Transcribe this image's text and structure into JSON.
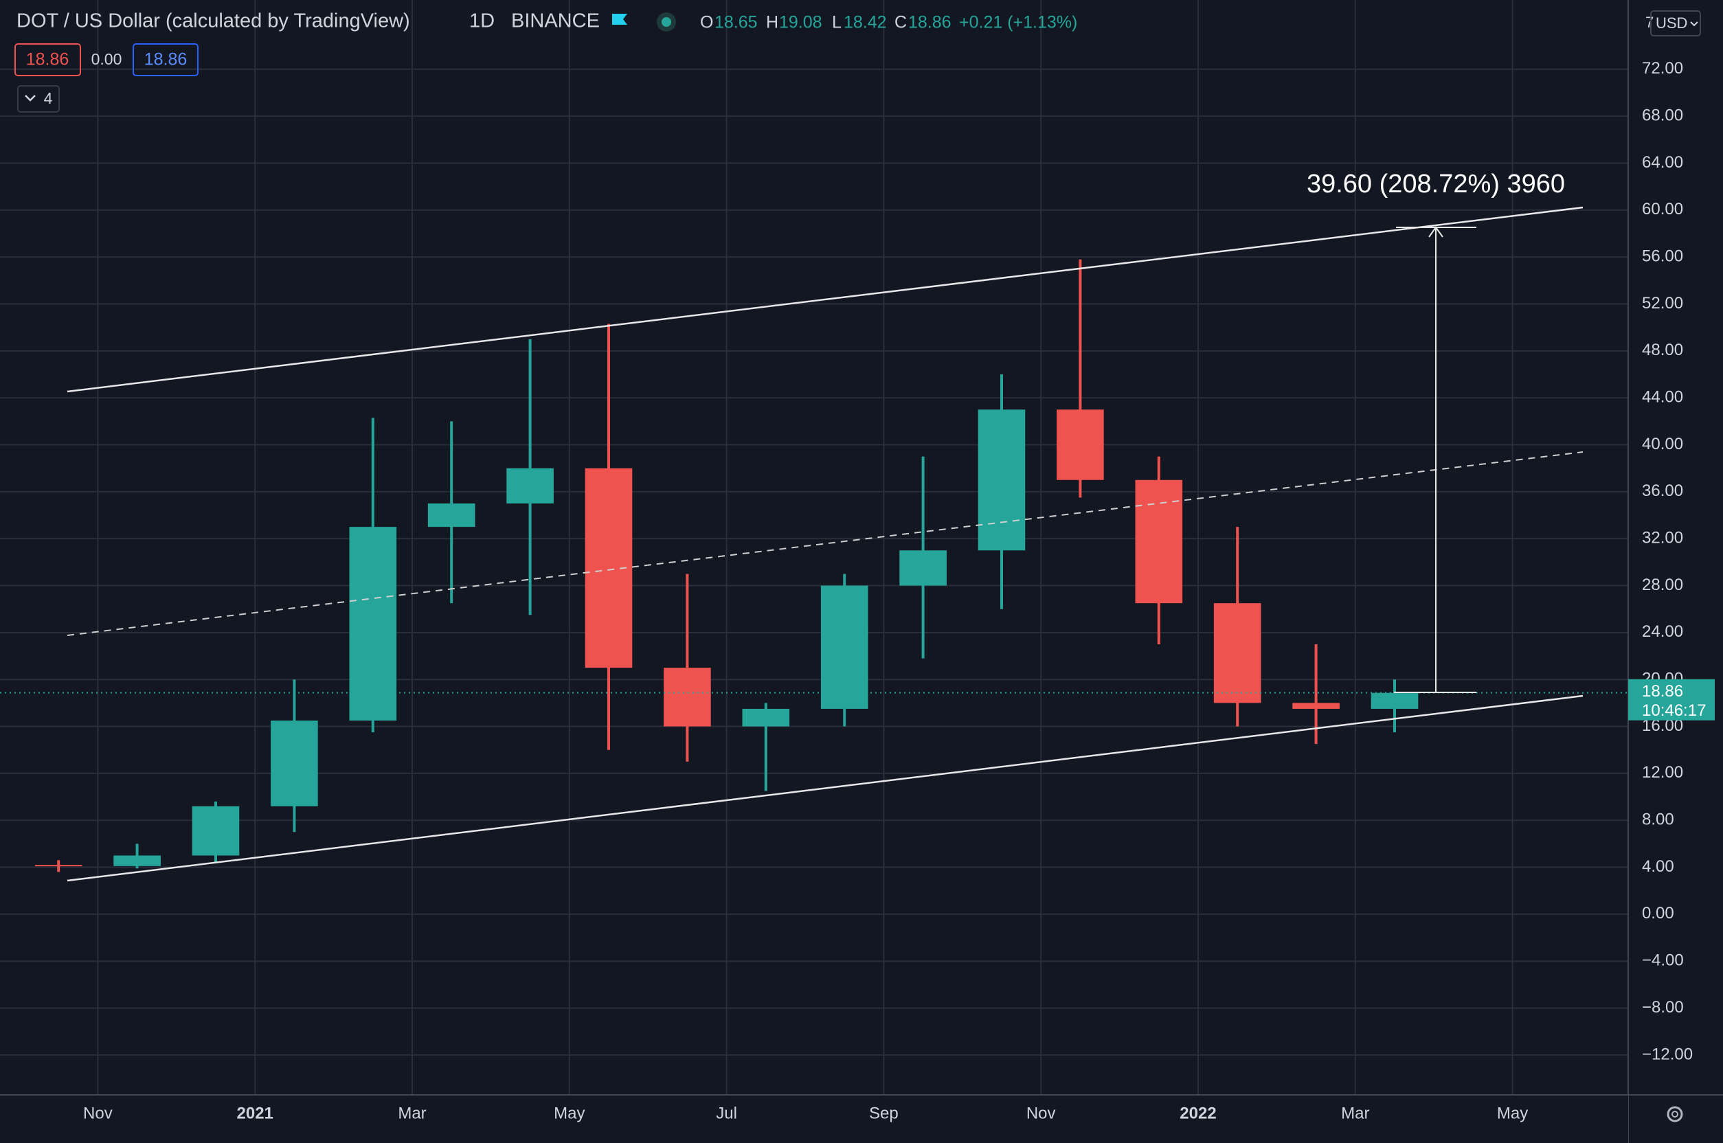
{
  "header": {
    "symbol": "DOT / US Dollar (calculated by TradingView)",
    "interval": "1D",
    "exchange": "BINANCE",
    "o_label": "O",
    "o_value": "18.65",
    "h_label": "H",
    "h_value": "19.08",
    "l_label": "L",
    "l_value": "18.42",
    "c_label": "C",
    "c_value": "18.86",
    "change": "+0.21 (+1.13%)",
    "sell_price": "18.86",
    "spread": "0.00",
    "buy_price": "18.86",
    "indicators_count": "4",
    "scale_count": "7",
    "currency": "USD"
  },
  "chart_data": {
    "type": "candlestick",
    "x": [
      "2020-10",
      "2020-11",
      "2020-12",
      "2021-01",
      "2021-02",
      "2021-03",
      "2021-04",
      "2021-05",
      "2021-06",
      "2021-07",
      "2021-08",
      "2021-09",
      "2021-10",
      "2021-11",
      "2021-12",
      "2022-01",
      "2022-02",
      "2022-03"
    ],
    "open": [
      4.2,
      4.1,
      5.0,
      9.2,
      16.5,
      33,
      35,
      38,
      21,
      16,
      17.5,
      28,
      31,
      43,
      37,
      26.5,
      18,
      17.5
    ],
    "high": [
      4.6,
      6.0,
      9.6,
      20.0,
      42.3,
      42,
      49.0,
      50.3,
      29,
      18,
      29,
      39,
      46,
      55.8,
      39,
      33,
      23,
      20
    ],
    "low": [
      3.6,
      3.9,
      4.4,
      7.0,
      15.5,
      26.5,
      25.5,
      14.0,
      13.0,
      10.5,
      16,
      21.8,
      26,
      35.5,
      23,
      16,
      14.5,
      15.5
    ],
    "close": [
      4.1,
      5.0,
      9.2,
      16.5,
      33,
      35,
      38,
      21,
      16,
      17.5,
      28,
      31,
      43,
      37,
      26.5,
      18,
      17.5,
      18.86
    ],
    "up_color": "#26a69a",
    "down_color": "#ef5350",
    "xlim": [
      "2020-10",
      "2022-06"
    ],
    "xticks": [
      {
        "value": "2020-11",
        "label": "Nov"
      },
      {
        "value": "2021-01",
        "label": "2021"
      },
      {
        "value": "2021-03",
        "label": "Mar"
      },
      {
        "value": "2021-05",
        "label": "May"
      },
      {
        "value": "2021-07",
        "label": "Jul"
      },
      {
        "value": "2021-09",
        "label": "Sep"
      },
      {
        "value": "2021-11",
        "label": "Nov"
      },
      {
        "value": "2022-01",
        "label": "2022"
      },
      {
        "value": "2022-03",
        "label": "Mar"
      },
      {
        "value": "2022-05",
        "label": "May"
      }
    ],
    "ylim": [
      -15.4,
      77.9
    ],
    "yticks": [
      {
        "value": 72,
        "label": "72.00"
      },
      {
        "value": 68,
        "label": "68.00"
      },
      {
        "value": 64,
        "label": "64.00"
      },
      {
        "value": 60,
        "label": "60.00"
      },
      {
        "value": 56,
        "label": "56.00"
      },
      {
        "value": 52,
        "label": "52.00"
      },
      {
        "value": 48,
        "label": "48.00"
      },
      {
        "value": 44,
        "label": "44.00"
      },
      {
        "value": 40,
        "label": "40.00"
      },
      {
        "value": 36,
        "label": "36.00"
      },
      {
        "value": 32,
        "label": "32.00"
      },
      {
        "value": 28,
        "label": "28.00"
      },
      {
        "value": 24,
        "label": "24.00"
      },
      {
        "value": 20,
        "label": "20.00"
      },
      {
        "value": 16,
        "label": "16.00"
      },
      {
        "value": 12,
        "label": "12.00"
      },
      {
        "value": 8,
        "label": "8.00"
      },
      {
        "value": 4,
        "label": "4.00"
      },
      {
        "value": 0,
        "label": "0.00"
      },
      {
        "value": -4,
        "label": "−4.00"
      },
      {
        "value": -8,
        "label": "−8.00"
      },
      {
        "value": -12,
        "label": "−12.00"
      }
    ],
    "grid": true,
    "last_price": 18.86,
    "countdown": "10:46:17",
    "annotation": "39.60 (208.72%) 3960"
  }
}
